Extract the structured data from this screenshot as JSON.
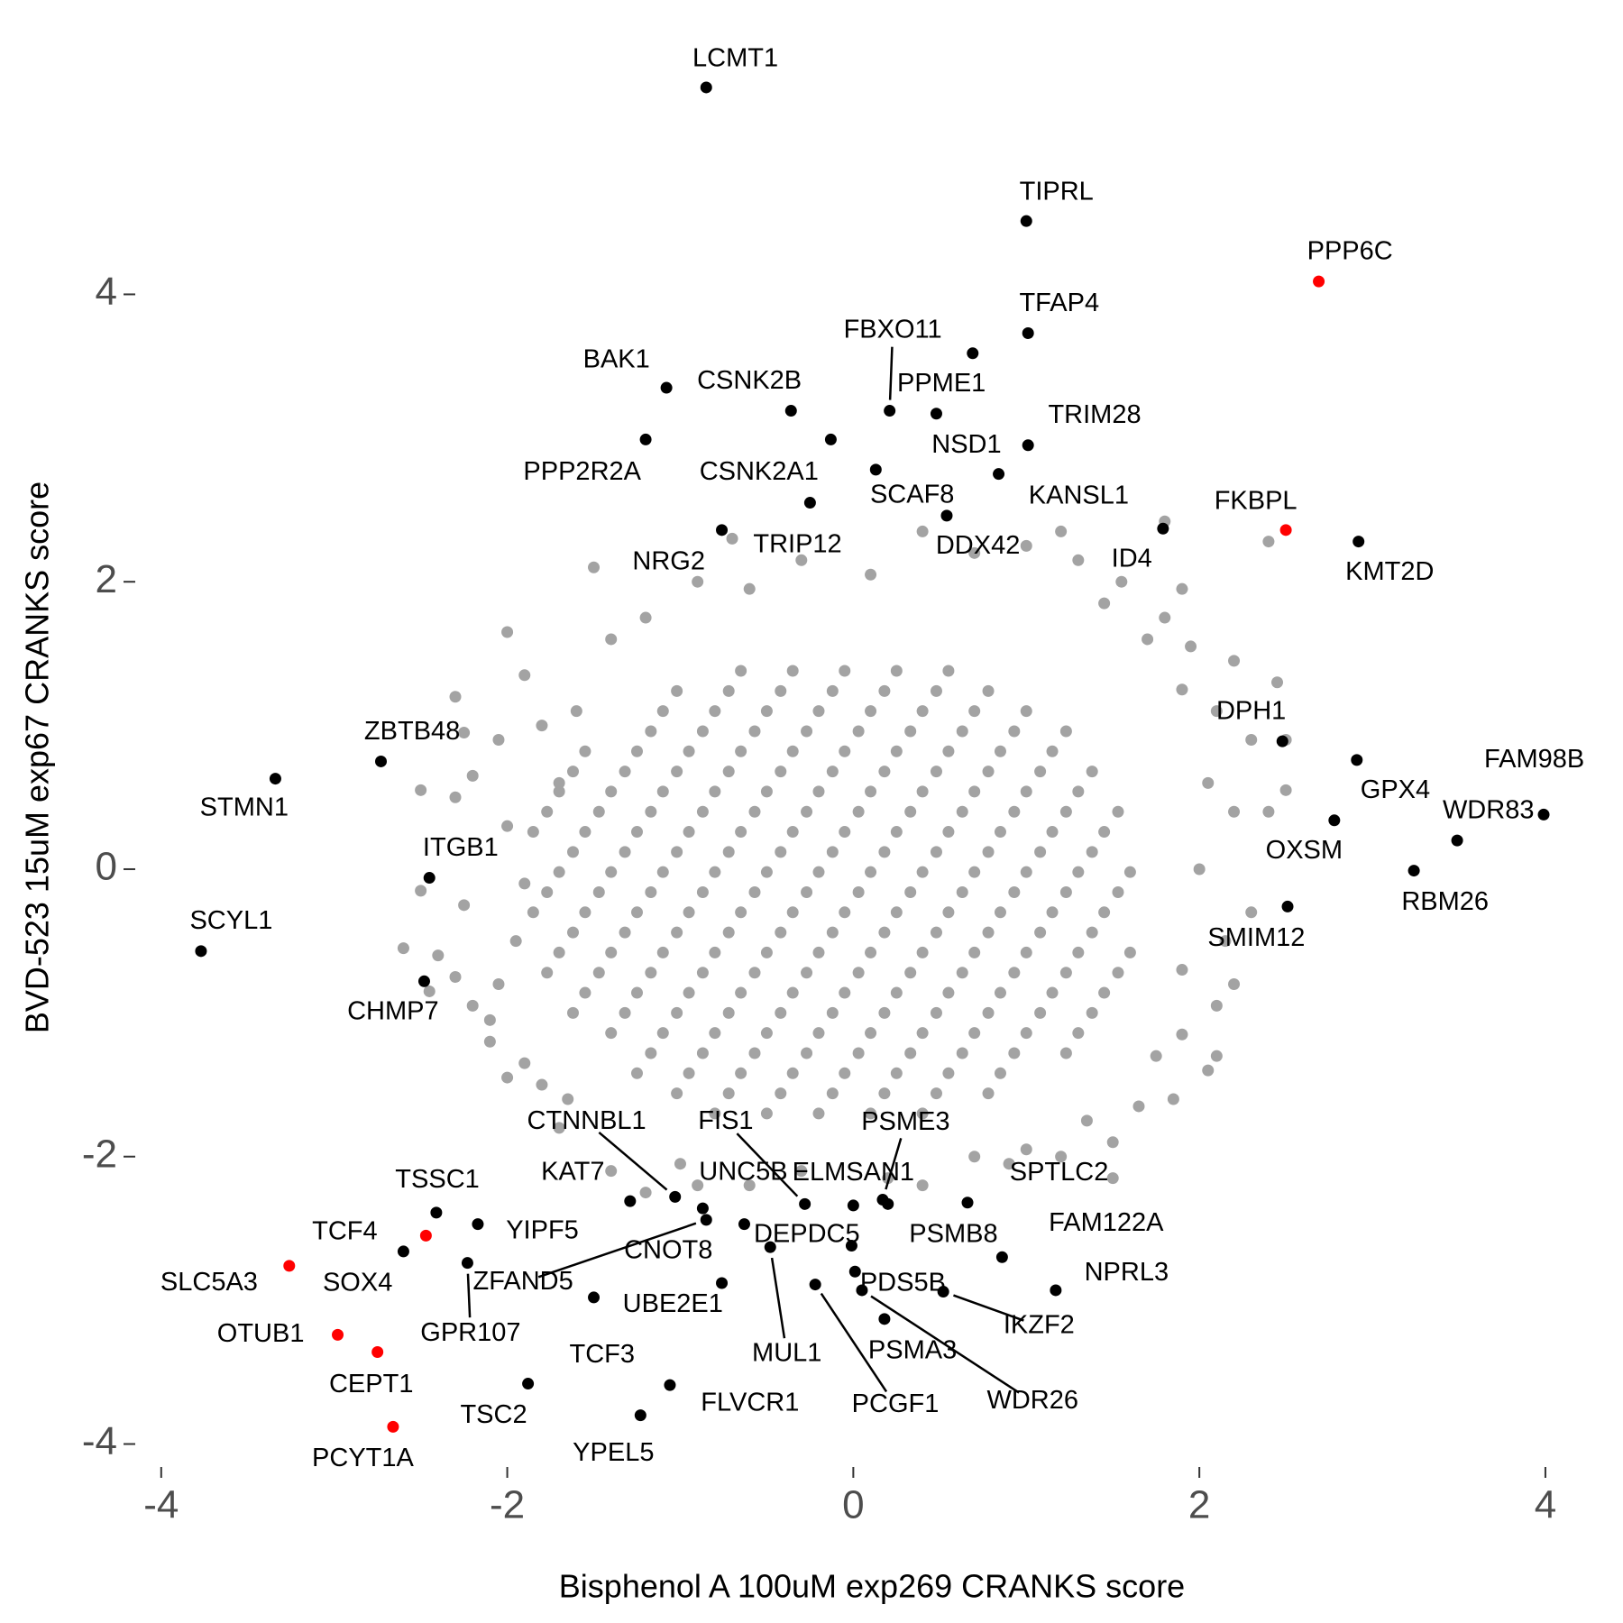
{
  "chart_data": {
    "type": "scatter",
    "x_label": "Bisphenol A 100uM exp269 CRANKS score",
    "y_label": "BVD-523 15uM exp67 CRANKS score",
    "xlim": [
      -4.15,
      4.24
    ],
    "ylim": [
      -4.16,
      5.86
    ],
    "xticks": [
      -4,
      -2,
      0,
      2,
      4
    ],
    "yticks": [
      -4,
      -2,
      0,
      2,
      4
    ],
    "grid": false,
    "series": [
      {
        "color": "#a3a3a3",
        "x": [
          -0.8,
          -0.5,
          -0.2,
          0.1,
          0.4,
          -1.02,
          -0.72,
          -0.42,
          -0.12,
          0.18,
          0.48,
          0.78,
          -1.25,
          -0.95,
          -0.65,
          -0.35,
          -0.05,
          0.25,
          0.55,
          0.85,
          -1.17,
          -0.87,
          -0.57,
          -0.27,
          0.03,
          0.33,
          0.63,
          0.93,
          1.23,
          -1.4,
          -1.1,
          -0.8,
          -0.5,
          -0.2,
          0.1,
          0.4,
          0.7,
          1,
          1.3,
          -1.62,
          -1.32,
          -1.02,
          -0.72,
          -0.42,
          -0.12,
          0.18,
          0.48,
          0.78,
          1.08,
          1.38,
          -1.55,
          -1.25,
          -0.95,
          -0.65,
          -0.35,
          -0.05,
          0.25,
          0.55,
          0.85,
          1.15,
          1.45,
          -1.77,
          -1.47,
          -1.17,
          -0.87,
          -0.57,
          -0.27,
          0.03,
          0.33,
          0.63,
          0.93,
          1.23,
          1.53,
          -1.7,
          -1.4,
          -1.1,
          -0.8,
          -0.5,
          -0.2,
          0.1,
          0.4,
          0.7,
          1,
          1.3,
          1.6,
          -1.62,
          -1.32,
          -1.02,
          -0.72,
          -0.42,
          -0.12,
          0.18,
          0.48,
          0.78,
          1.08,
          1.38,
          -1.85,
          -1.55,
          -1.25,
          -0.95,
          -0.65,
          -0.35,
          -0.05,
          0.25,
          0.55,
          0.85,
          1.15,
          1.45,
          -1.77,
          -1.47,
          -1.17,
          -0.87,
          -0.57,
          -0.27,
          0.03,
          0.33,
          0.63,
          0.93,
          1.23,
          1.53,
          -1.7,
          -1.4,
          -1.1,
          -0.8,
          -0.5,
          -0.2,
          0.1,
          0.4,
          0.7,
          1,
          1.3,
          1.6,
          -1.62,
          -1.32,
          -1.02,
          -0.72,
          -0.42,
          -0.12,
          0.18,
          0.48,
          0.78,
          1.08,
          1.38,
          -1.85,
          -1.55,
          -1.25,
          -0.95,
          -0.65,
          -0.35,
          -0.05,
          0.25,
          0.55,
          0.85,
          1.15,
          1.45,
          -1.77,
          -1.47,
          -1.17,
          -0.87,
          -0.57,
          -0.27,
          0.03,
          0.33,
          0.63,
          0.93,
          1.23,
          1.53,
          -1.7,
          -1.4,
          -1.1,
          -0.8,
          -0.5,
          -0.2,
          0.1,
          0.4,
          0.7,
          1,
          1.3,
          -1.62,
          -1.32,
          -1.02,
          -0.72,
          -0.42,
          -0.12,
          0.18,
          0.48,
          0.78,
          1.08,
          1.38,
          -1.55,
          -1.25,
          -0.95,
          -0.65,
          -0.35,
          -0.05,
          0.25,
          0.55,
          0.85,
          1.15,
          -1.17,
          -0.87,
          -0.57,
          -0.27,
          0.03,
          0.33,
          0.63,
          0.93,
          1.23,
          -1.1,
          -0.8,
          -0.5,
          -0.2,
          0.1,
          0.4,
          0.7,
          1,
          -1.02,
          -0.72,
          -0.42,
          -0.12,
          0.18,
          0.48,
          0.78,
          -0.65,
          -0.35,
          -0.05,
          0.25,
          0.55,
          -2,
          -1.9,
          -2.3,
          -2.5,
          -2.3,
          -2.2,
          -2.4,
          -2.3,
          -2.2,
          -2.1,
          -1.9,
          -2,
          -2.1,
          -2.6,
          -2.25,
          -2.45,
          -1.8,
          -1.7,
          -1.4,
          -1.2,
          -0.9,
          -0.6,
          -0.3,
          0.2,
          0.4,
          0.9,
          1.2,
          1.5,
          1.5,
          1.75,
          1.9,
          2.1,
          2.2,
          2.1,
          2.05,
          1.85,
          2.15,
          2.3,
          2.2,
          2.4,
          2.5,
          2.3,
          2.1,
          1.9,
          2.2,
          2.45,
          1.7,
          1.8,
          1.45,
          1.9,
          1.3,
          1,
          0.7,
          1.2,
          1.8,
          2.4,
          0.4,
          0.1,
          -0.3,
          -0.6,
          -0.9,
          -1.2,
          -1.4,
          -1.6,
          -1.8,
          -1.7,
          -2,
          -1.9,
          -1.95,
          -2.05,
          -2.5,
          -2.25,
          -2.05,
          -1.65,
          -1,
          0.7,
          1,
          1.35,
          1.65,
          1.9,
          2,
          2.05,
          1.95,
          1.55,
          -1.5,
          -0.7,
          2.5
        ],
        "y": [
          -1.7,
          -1.7,
          -1.7,
          -1.7,
          -1.7,
          -1.56,
          -1.56,
          -1.56,
          -1.56,
          -1.56,
          -1.56,
          -1.56,
          -1.42,
          -1.42,
          -1.42,
          -1.42,
          -1.42,
          -1.42,
          -1.42,
          -1.42,
          -1.28,
          -1.28,
          -1.28,
          -1.28,
          -1.28,
          -1.28,
          -1.28,
          -1.28,
          -1.28,
          -1.14,
          -1.14,
          -1.14,
          -1.14,
          -1.14,
          -1.14,
          -1.14,
          -1.14,
          -1.14,
          -1.14,
          -1,
          -1,
          -1,
          -1,
          -1,
          -1,
          -1,
          -1,
          -1,
          -1,
          -1,
          -0.86,
          -0.86,
          -0.86,
          -0.86,
          -0.86,
          -0.86,
          -0.86,
          -0.86,
          -0.86,
          -0.86,
          -0.86,
          -0.72,
          -0.72,
          -0.72,
          -0.72,
          -0.72,
          -0.72,
          -0.72,
          -0.72,
          -0.72,
          -0.72,
          -0.72,
          -0.72,
          -0.58,
          -0.58,
          -0.58,
          -0.58,
          -0.58,
          -0.58,
          -0.58,
          -0.58,
          -0.58,
          -0.58,
          -0.58,
          -0.58,
          -0.44,
          -0.44,
          -0.44,
          -0.44,
          -0.44,
          -0.44,
          -0.44,
          -0.44,
          -0.44,
          -0.44,
          -0.44,
          -0.3,
          -0.3,
          -0.3,
          -0.3,
          -0.3,
          -0.3,
          -0.3,
          -0.3,
          -0.3,
          -0.3,
          -0.3,
          -0.3,
          -0.16,
          -0.16,
          -0.16,
          -0.16,
          -0.16,
          -0.16,
          -0.16,
          -0.16,
          -0.16,
          -0.16,
          -0.16,
          -0.16,
          -0.02,
          -0.02,
          -0.02,
          -0.02,
          -0.02,
          -0.02,
          -0.02,
          -0.02,
          -0.02,
          -0.02,
          -0.02,
          -0.02,
          0.12,
          0.12,
          0.12,
          0.12,
          0.12,
          0.12,
          0.12,
          0.12,
          0.12,
          0.12,
          0.12,
          0.26,
          0.26,
          0.26,
          0.26,
          0.26,
          0.26,
          0.26,
          0.26,
          0.26,
          0.26,
          0.26,
          0.26,
          0.4,
          0.4,
          0.4,
          0.4,
          0.4,
          0.4,
          0.4,
          0.4,
          0.4,
          0.4,
          0.4,
          0.4,
          0.54,
          0.54,
          0.54,
          0.54,
          0.54,
          0.54,
          0.54,
          0.54,
          0.54,
          0.54,
          0.54,
          0.68,
          0.68,
          0.68,
          0.68,
          0.68,
          0.68,
          0.68,
          0.68,
          0.68,
          0.68,
          0.68,
          0.82,
          0.82,
          0.82,
          0.82,
          0.82,
          0.82,
          0.82,
          0.82,
          0.82,
          0.82,
          0.96,
          0.96,
          0.96,
          0.96,
          0.96,
          0.96,
          0.96,
          0.96,
          0.96,
          1.1,
          1.1,
          1.1,
          1.1,
          1.1,
          1.1,
          1.1,
          1.1,
          1.24,
          1.24,
          1.24,
          1.24,
          1.24,
          1.24,
          1.24,
          1.38,
          1.38,
          1.38,
          1.38,
          1.38,
          1.65,
          1.35,
          1.2,
          0.55,
          0.5,
          0.65,
          -0.6,
          -0.75,
          -0.95,
          -1.2,
          -1.35,
          -1.45,
          -1.05,
          -0.55,
          -0.25,
          -0.85,
          -1.5,
          -1.8,
          -2.1,
          -2.25,
          -2.2,
          -2.2,
          -2.1,
          -2.15,
          -2.2,
          -2.05,
          -2,
          -2.15,
          -1.9,
          -1.3,
          -1.15,
          -0.95,
          -0.8,
          -1.3,
          -1.4,
          -1.6,
          -0.5,
          -0.3,
          0.4,
          0.4,
          0.9,
          0.9,
          1.1,
          1.25,
          1.45,
          1.3,
          1.6,
          1.75,
          1.85,
          1.95,
          2.15,
          2.25,
          2.2,
          2.35,
          2.42,
          2.28,
          2.35,
          2.05,
          2.15,
          1.95,
          2,
          1.75,
          1.6,
          1.1,
          1,
          0.6,
          0.3,
          -0.1,
          -0.5,
          -0.8,
          -0.15,
          0.95,
          0.9,
          -1.6,
          -2.05,
          -2,
          -1.95,
          -1.75,
          -1.65,
          -0.7,
          0,
          0.6,
          1.55,
          2,
          2.1,
          2.3,
          0.55
        ]
      },
      {
        "color": "#000000",
        "labels": [
          "LCMT1",
          "TIPRL",
          "TFAP4",
          "PPME1",
          "BAK1",
          "CSNK2B",
          "FBXO11",
          "NSD1",
          "CSNK2A1",
          "PPP2R2A",
          "TRIM28",
          "SCAF8",
          "KANSL1",
          "TRIP12",
          "DDX42",
          "NRG2",
          "ID4",
          "KMT2D",
          "ZBTB48",
          "STMN1",
          "ITGB1",
          "SCYL1",
          "CHMP7",
          "DPH1",
          "GPX4",
          "FAM98B",
          "OXSM",
          "WDR83",
          "RBM26",
          "SMIM12",
          "TSSC1",
          "YIPF5",
          "SOX4",
          "GPR107",
          "TSC2",
          "FLVCR1",
          "YPEL5",
          "TCF3",
          "KAT7",
          "CTNNBL1",
          "UNC5B",
          "ZFAND5",
          "CNOT8",
          "MUL1",
          "FIS1",
          "ELMSAN1",
          "PSME3",
          "PSMB8",
          "DEPDC5",
          "UBE2E1",
          "PCGF1",
          "PDS5B",
          "WDR26",
          "PSMA3",
          "IKZF2",
          "SPTLC2",
          "FAM122A",
          "NPRL3"
        ],
        "x": [
          -0.85,
          1,
          1.01,
          0.69,
          -1.08,
          -0.36,
          0.21,
          0.48,
          -0.13,
          -1.2,
          1.01,
          0.13,
          0.84,
          -0.25,
          0.54,
          -0.76,
          1.79,
          2.92,
          -2.73,
          -3.34,
          -2.45,
          -3.77,
          -2.48,
          2.48,
          2.91,
          3.99,
          2.78,
          3.49,
          3.24,
          2.51,
          -2.41,
          -2.17,
          -2.6,
          -2.23,
          -1.88,
          -1.06,
          -1.23,
          -1.5,
          -1.29,
          -1.03,
          -0.87,
          -0.85,
          -0.63,
          -0.48,
          -0.28,
          0,
          0.17,
          0.2,
          -0.01,
          -0.76,
          -0.22,
          0.01,
          0.05,
          0.18,
          0.52,
          0.66,
          0.86,
          1.17
        ],
        "y": [
          5.44,
          4.51,
          3.73,
          3.59,
          3.35,
          3.19,
          3.19,
          3.17,
          2.99,
          2.99,
          2.95,
          2.78,
          2.75,
          2.55,
          2.46,
          2.36,
          2.37,
          2.28,
          0.75,
          0.63,
          -0.06,
          -0.57,
          -0.78,
          0.89,
          0.76,
          0.38,
          0.34,
          0.2,
          -0.01,
          -0.26,
          -2.39,
          -2.47,
          -2.66,
          -2.74,
          -3.58,
          -3.59,
          -3.8,
          -2.98,
          -2.31,
          -2.28,
          -2.36,
          -2.44,
          -2.47,
          -2.63,
          -2.33,
          -2.34,
          -2.3,
          -2.33,
          -2.62,
          -2.88,
          -2.89,
          -2.8,
          -2.93,
          -3.13,
          -2.94,
          -2.32,
          -2.7,
          -2.93
        ]
      },
      {
        "color": "#ff0000",
        "labels": [
          "PPP6C",
          "FKBPL",
          "TCF4",
          "SLC5A3",
          "OTUB1",
          "CEPT1",
          "PCYT1A"
        ],
        "x": [
          2.69,
          2.5,
          -2.47,
          -3.26,
          -2.98,
          -2.75,
          -2.66
        ],
        "y": [
          4.09,
          2.36,
          -2.55,
          -2.76,
          -3.24,
          -3.36,
          -3.88
        ]
      }
    ]
  }
}
